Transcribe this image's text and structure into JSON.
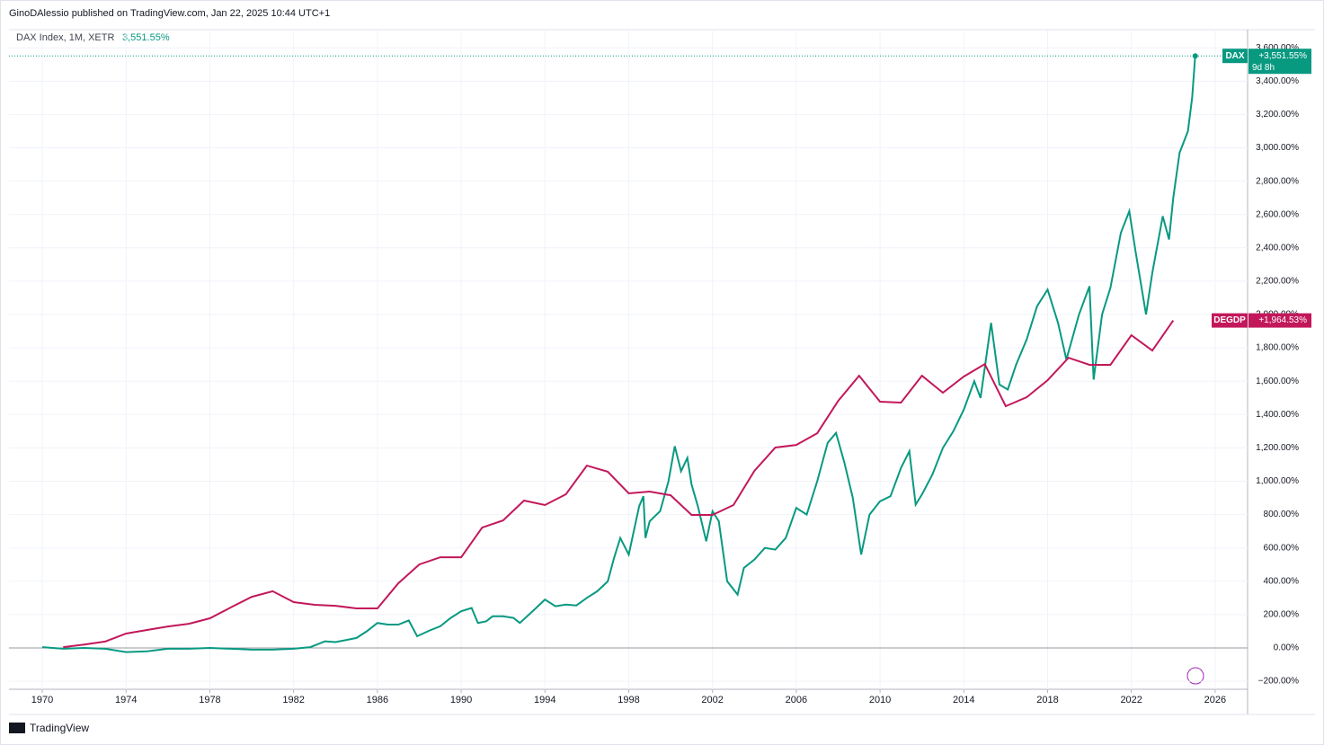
{
  "header": {
    "publisher": "GinoDAlessio published on TradingView.com, Jan 22, 2025 10:44 UTC+1",
    "symbol": "DAX Index, 1M, XETR",
    "last_value_label": "3,551.55%"
  },
  "footer": {
    "brand": "TradingView"
  },
  "chart_data": {
    "type": "line",
    "xlim": [
      1968.41,
      2027.55
    ],
    "xticks": [
      1970,
      1974,
      1978,
      1982,
      1986,
      1990,
      1994,
      1998,
      2002,
      2006,
      2010,
      2014,
      2018,
      2022,
      2026
    ],
    "ylim": [
      -248,
      3709
    ],
    "yticks": [
      {
        "value": -200,
        "label": "−200.00%"
      },
      {
        "value": 0,
        "label": "0.00%"
      },
      {
        "value": 200,
        "label": "200.00%"
      },
      {
        "value": 400,
        "label": "400.00%"
      },
      {
        "value": 600,
        "label": "600.00%"
      },
      {
        "value": 800,
        "label": "800.00%"
      },
      {
        "value": 1000,
        "label": "1,000.00%"
      },
      {
        "value": 1200,
        "label": "1,200.00%"
      },
      {
        "value": 1400,
        "label": "1,400.00%"
      },
      {
        "value": 1600,
        "label": "1,600.00%"
      },
      {
        "value": 1800,
        "label": "1,800.00%"
      },
      {
        "value": 2000,
        "label": "2,000.00%"
      },
      {
        "value": 2200,
        "label": "2,200.00%"
      },
      {
        "value": 2400,
        "label": "2,400.00%"
      },
      {
        "value": 2600,
        "label": "2,600.00%"
      },
      {
        "value": 2800,
        "label": "2,800.00%"
      },
      {
        "value": 3000,
        "label": "3,000.00%"
      },
      {
        "value": 3200,
        "label": "3,200.00%"
      },
      {
        "value": 3400,
        "label": "3,400.00%"
      },
      {
        "value": 3600,
        "label": "3,600.00%"
      }
    ],
    "grid": true,
    "series": [
      {
        "name": "DAX",
        "color": "#089981",
        "last_label": "+3,551.55%",
        "countdown": "9d 8h",
        "x": [
          1970,
          1971,
          1972,
          1973,
          1974,
          1975,
          1976,
          1977,
          1978,
          1979,
          1980,
          1981,
          1982,
          1982.8,
          1983.5,
          1984,
          1985,
          1985.5,
          1986,
          1986.5,
          1987,
          1987.5,
          1987.9,
          1988.5,
          1989,
          1989.5,
          1990,
          1990.5,
          1990.8,
          1991.2,
          1991.5,
          1992,
          1992.5,
          1992.8,
          1993.5,
          1994,
          1994.5,
          1995,
          1995.5,
          1996,
          1996.5,
          1997,
          1997.3,
          1997.6,
          1998,
          1998.5,
          1998.7,
          1998.8,
          1999,
          1999.5,
          1999.9,
          2000.2,
          2000.5,
          2000.8,
          2001,
          2001.3,
          2001.7,
          2002,
          2002.3,
          2002.7,
          2003.2,
          2003.5,
          2004,
          2004.5,
          2005,
          2005.5,
          2006,
          2006.5,
          2007,
          2007.5,
          2007.9,
          2008.3,
          2008.7,
          2009.1,
          2009.5,
          2010,
          2010.5,
          2011,
          2011.4,
          2011.7,
          2012,
          2012.5,
          2013,
          2013.5,
          2014,
          2014.5,
          2014.8,
          2015.3,
          2015.7,
          2016.1,
          2016.5,
          2017,
          2017.5,
          2018,
          2018.5,
          2018.9,
          2019.5,
          2020,
          2020.2,
          2020.6,
          2021,
          2021.5,
          2021.9,
          2022.2,
          2022.7,
          2023,
          2023.5,
          2023.8,
          2024,
          2024.3,
          2024.7,
          2024.9,
          2025.05
        ],
        "values": [
          5,
          -5,
          0,
          -5,
          -25,
          -20,
          -5,
          -5,
          0,
          -5,
          -10,
          -10,
          -5,
          5,
          40,
          35,
          60,
          100,
          150,
          140,
          140,
          165,
          70,
          105,
          130,
          180,
          220,
          240,
          150,
          160,
          190,
          190,
          180,
          150,
          230,
          290,
          250,
          260,
          255,
          300,
          340,
          400,
          540,
          660,
          560,
          850,
          910,
          660,
          760,
          820,
          1000,
          1210,
          1060,
          1140,
          980,
          850,
          640,
          820,
          760,
          400,
          320,
          480,
          530,
          600,
          590,
          660,
          840,
          800,
          1000,
          1230,
          1290,
          1110,
          900,
          560,
          800,
          880,
          910,
          1080,
          1180,
          860,
          920,
          1040,
          1200,
          1300,
          1430,
          1600,
          1500,
          1950,
          1580,
          1550,
          1700,
          1850,
          2050,
          2150,
          1950,
          1730,
          2000,
          2170,
          1610,
          2000,
          2160,
          2490,
          2620,
          2380,
          2000,
          2250,
          2590,
          2450,
          2700,
          2970,
          3100,
          3300,
          3551.55
        ]
      },
      {
        "name": "DEGDP",
        "color": "#c2185b",
        "last_label": "+1,964.53%",
        "x": [
          1971,
          1972,
          1973,
          1974,
          1975,
          1976,
          1977,
          1978,
          1979,
          1980,
          1981,
          1982,
          1983,
          1984,
          1985,
          1986,
          1987,
          1988,
          1989,
          1990,
          1991,
          1992,
          1993,
          1994,
          1995,
          1996,
          1997,
          1998,
          1999,
          2000,
          2001,
          2002,
          2003,
          2004,
          2005,
          2006,
          2007,
          2008,
          2009,
          2010,
          2011,
          2012,
          2013,
          2014,
          2015,
          2016,
          2017,
          2018,
          2019,
          2020,
          2021,
          2022,
          2023,
          2024
        ],
        "values": [
          5,
          20,
          38,
          86,
          108,
          129,
          145,
          178,
          243,
          307,
          340,
          275,
          259,
          253,
          237,
          237,
          388,
          501,
          544,
          544,
          722,
          765,
          884,
          857,
          922,
          1094,
          1057,
          927,
          938,
          916,
          798,
          798,
          857,
          1062,
          1202,
          1218,
          1288,
          1482,
          1633,
          1477,
          1472,
          1633,
          1531,
          1628,
          1703,
          1450,
          1504,
          1606,
          1741,
          1698,
          1698,
          1876,
          1784,
          1964.53
        ]
      }
    ]
  }
}
